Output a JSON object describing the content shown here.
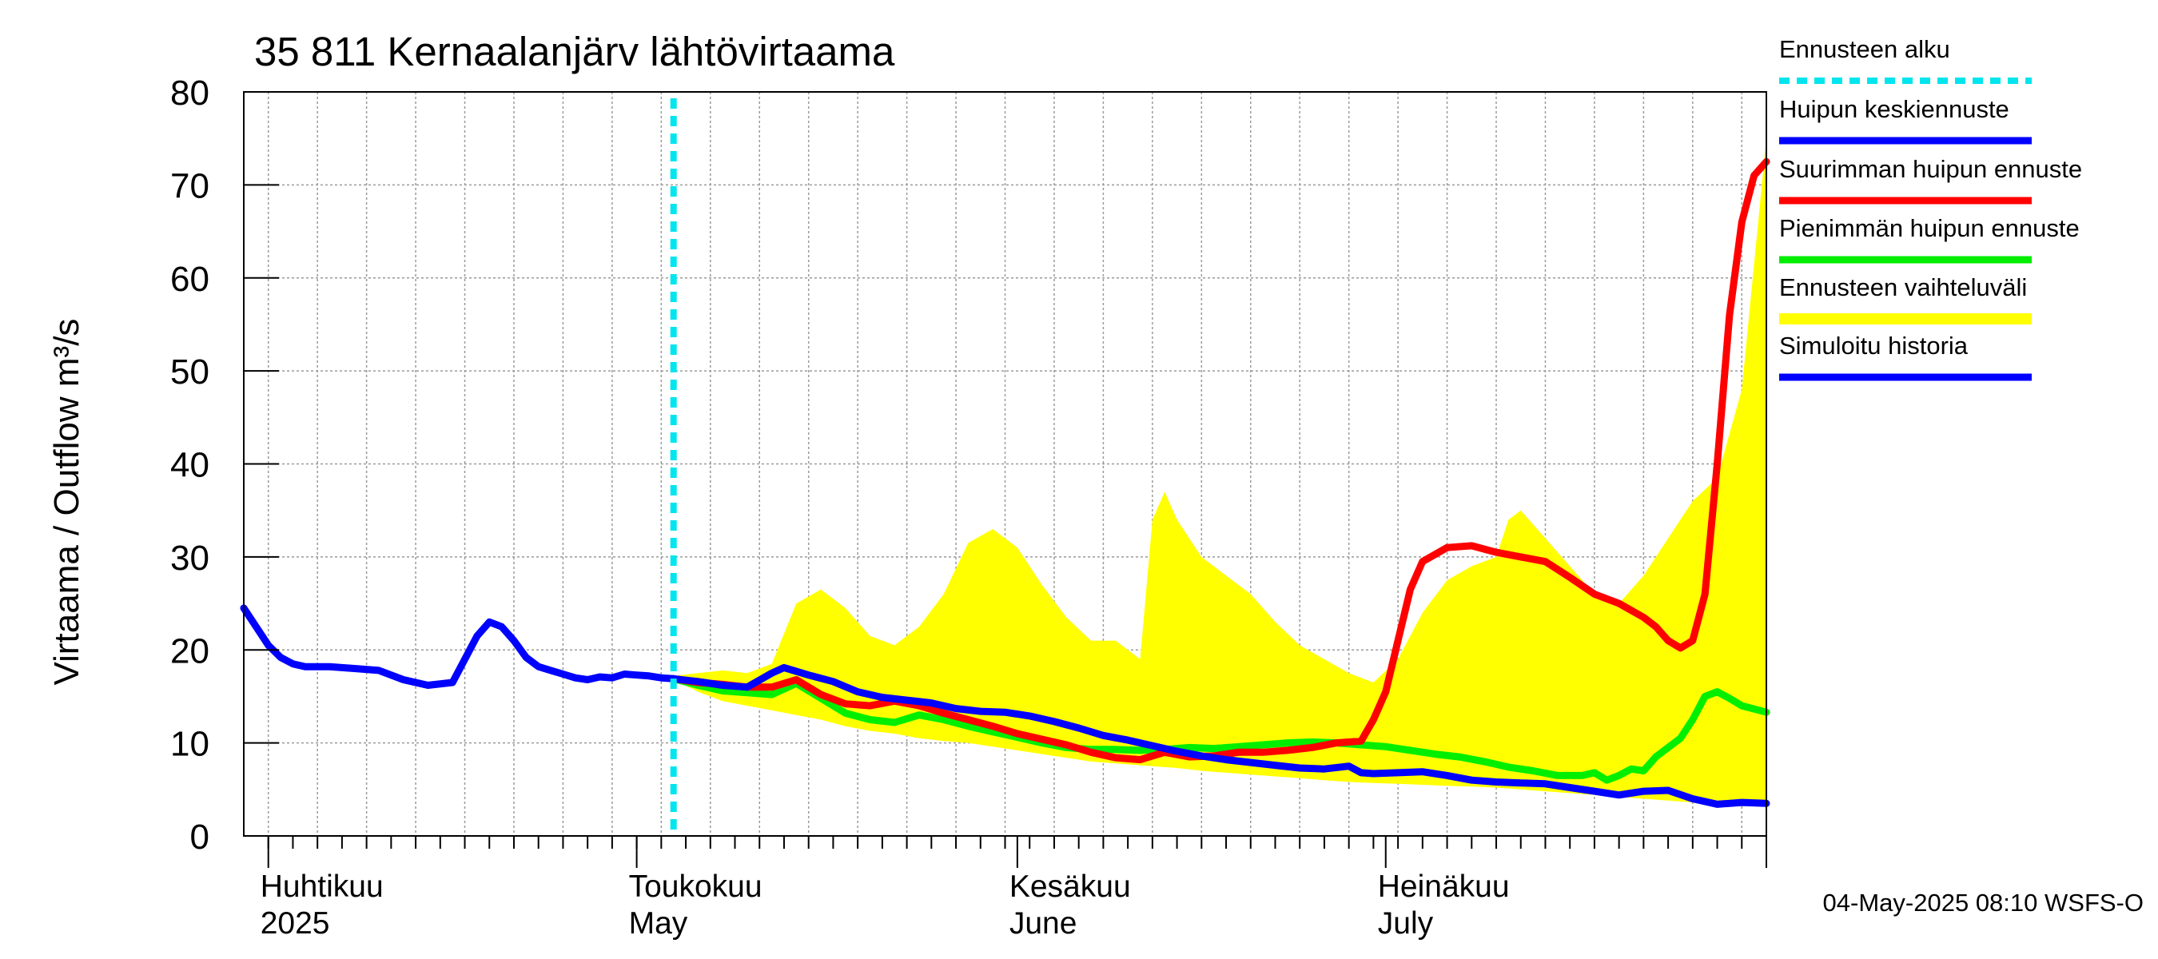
{
  "chart_data": {
    "type": "line",
    "title": "35 811 Kernaalanjärv lähtövirtaama",
    "ylabel": "Virtaama / Outflow    m³/s",
    "ylim": [
      0,
      80
    ],
    "yticks": [
      0,
      10,
      20,
      30,
      40,
      50,
      60,
      70,
      80
    ],
    "xlim": [
      "2025-03-30",
      "2025-08-01"
    ],
    "x_month_labels": [
      {
        "date": "2025-04-01",
        "fi": "Huhtikuu",
        "en": "2025"
      },
      {
        "date": "2025-05-01",
        "fi": "Toukokuu",
        "en": "May"
      },
      {
        "date": "2025-06-01",
        "fi": "Kesäkuu",
        "en": "June"
      },
      {
        "date": "2025-07-01",
        "fi": "Heinäkuu",
        "en": "July"
      }
    ],
    "forecast_start": "2025-05-04",
    "grid": true,
    "legend_position": "right",
    "footer": "04-May-2025 08:10 WSFS-O",
    "legend": [
      {
        "label": "Ennusteen alku",
        "color": "#00e5ee",
        "style": "dashed"
      },
      {
        "label": "Huipun keskiennuste",
        "color": "#0000ff",
        "style": "solid"
      },
      {
        "label": "Suurimman huipun ennuste",
        "color": "#ff0000",
        "style": "solid"
      },
      {
        "label": "Pienimmän huipun ennuste",
        "color": "#00ee00",
        "style": "solid"
      },
      {
        "label": "Ennusteen vaihteluväli",
        "color": "#ffff00",
        "style": "band"
      },
      {
        "label": "Simuloitu historia",
        "color": "#0000ff",
        "style": "solid"
      }
    ],
    "series": [
      {
        "name": "Simuloitu historia",
        "color": "#0000ff",
        "x": [
          "2025-03-30",
          "2025-03-31",
          "2025-04-01",
          "2025-04-02",
          "2025-04-03",
          "2025-04-04",
          "2025-04-06",
          "2025-04-08",
          "2025-04-10",
          "2025-04-12",
          "2025-04-14",
          "2025-04-16",
          "2025-04-18",
          "2025-04-19",
          "2025-04-20",
          "2025-04-21",
          "2025-04-22",
          "2025-04-23",
          "2025-04-24",
          "2025-04-25",
          "2025-04-26",
          "2025-04-27",
          "2025-04-28",
          "2025-04-29",
          "2025-04-30",
          "2025-05-01",
          "2025-05-02",
          "2025-05-03",
          "2025-05-04"
        ],
        "y": [
          24.5,
          22.5,
          20.5,
          19.2,
          18.5,
          18.2,
          18.2,
          18.0,
          17.8,
          16.8,
          16.2,
          16.5,
          21.5,
          23.0,
          22.5,
          21.0,
          19.2,
          18.2,
          17.8,
          17.4,
          17.0,
          16.8,
          17.1,
          17.0,
          17.4,
          17.3,
          17.2,
          17.0,
          16.9
        ]
      },
      {
        "name": "Huipun keskiennuste",
        "color": "#0000ff",
        "x": [
          "2025-05-04",
          "2025-05-06",
          "2025-05-08",
          "2025-05-10",
          "2025-05-12",
          "2025-05-13",
          "2025-05-15",
          "2025-05-17",
          "2025-05-19",
          "2025-05-21",
          "2025-05-23",
          "2025-05-25",
          "2025-05-27",
          "2025-05-29",
          "2025-05-31",
          "2025-06-02",
          "2025-06-04",
          "2025-06-06",
          "2025-06-08",
          "2025-06-10",
          "2025-06-12",
          "2025-06-14",
          "2025-06-16",
          "2025-06-18",
          "2025-06-20",
          "2025-06-22",
          "2025-06-24",
          "2025-06-26",
          "2025-06-28",
          "2025-06-29",
          "2025-06-30",
          "2025-07-02",
          "2025-07-04",
          "2025-07-06",
          "2025-07-08",
          "2025-07-10",
          "2025-07-12",
          "2025-07-14",
          "2025-07-16",
          "2025-07-18",
          "2025-07-20",
          "2025-07-22",
          "2025-07-24",
          "2025-07-26",
          "2025-07-28",
          "2025-07-30",
          "2025-08-01"
        ],
        "y": [
          16.9,
          16.6,
          16.2,
          16.0,
          17.5,
          18.1,
          17.3,
          16.6,
          15.5,
          14.9,
          14.6,
          14.3,
          13.7,
          13.4,
          13.3,
          12.9,
          12.3,
          11.6,
          10.8,
          10.3,
          9.7,
          9.1,
          8.6,
          8.2,
          7.9,
          7.6,
          7.3,
          7.2,
          7.5,
          6.8,
          6.7,
          6.8,
          6.9,
          6.5,
          6.0,
          5.8,
          5.7,
          5.6,
          5.2,
          4.8,
          4.4,
          4.8,
          4.9,
          4.0,
          3.4,
          3.6,
          3.5
        ]
      },
      {
        "name": "Suurimman huipun ennuste",
        "color": "#ff0000",
        "x": [
          "2025-05-04",
          "2025-05-06",
          "2025-05-08",
          "2025-05-10",
          "2025-05-12",
          "2025-05-14",
          "2025-05-16",
          "2025-05-18",
          "2025-05-20",
          "2025-05-22",
          "2025-05-24",
          "2025-05-26",
          "2025-05-28",
          "2025-05-30",
          "2025-06-01",
          "2025-06-03",
          "2025-06-05",
          "2025-06-07",
          "2025-06-09",
          "2025-06-11",
          "2025-06-13",
          "2025-06-15",
          "2025-06-17",
          "2025-06-19",
          "2025-06-21",
          "2025-06-23",
          "2025-06-25",
          "2025-06-27",
          "2025-06-29",
          "2025-06-30",
          "2025-07-01",
          "2025-07-02",
          "2025-07-03",
          "2025-07-04",
          "2025-07-06",
          "2025-07-08",
          "2025-07-10",
          "2025-07-12",
          "2025-07-14",
          "2025-07-16",
          "2025-07-18",
          "2025-07-20",
          "2025-07-22",
          "2025-07-23",
          "2025-07-24",
          "2025-07-25",
          "2025-07-26",
          "2025-07-27",
          "2025-07-28",
          "2025-07-29",
          "2025-07-30",
          "2025-07-31",
          "2025-08-01"
        ],
        "y": [
          16.9,
          16.5,
          16.3,
          16.0,
          16.0,
          16.8,
          15.2,
          14.2,
          14.0,
          14.5,
          14.0,
          13.2,
          12.5,
          11.8,
          11.0,
          10.4,
          9.8,
          9.0,
          8.4,
          8.2,
          9.0,
          8.5,
          8.6,
          9.0,
          9.0,
          9.2,
          9.5,
          10.0,
          10.2,
          12.5,
          15.5,
          21.0,
          26.5,
          29.5,
          31.0,
          31.2,
          30.5,
          30.0,
          29.5,
          27.8,
          26.0,
          25.0,
          23.5,
          22.5,
          21.0,
          20.2,
          21.0,
          26.0,
          40.0,
          56.0,
          66.0,
          71.0,
          72.5
        ]
      },
      {
        "name": "Pienimmän huipun ennuste",
        "color": "#00ee00",
        "x": [
          "2025-05-04",
          "2025-05-06",
          "2025-05-08",
          "2025-05-10",
          "2025-05-12",
          "2025-05-14",
          "2025-05-16",
          "2025-05-18",
          "2025-05-20",
          "2025-05-22",
          "2025-05-24",
          "2025-05-26",
          "2025-05-28",
          "2025-05-30",
          "2025-06-01",
          "2025-06-03",
          "2025-06-05",
          "2025-06-07",
          "2025-06-09",
          "2025-06-11",
          "2025-06-13",
          "2025-06-15",
          "2025-06-17",
          "2025-06-19",
          "2025-06-21",
          "2025-06-23",
          "2025-06-25",
          "2025-06-27",
          "2025-06-29",
          "2025-07-01",
          "2025-07-03",
          "2025-07-05",
          "2025-07-07",
          "2025-07-09",
          "2025-07-11",
          "2025-07-13",
          "2025-07-15",
          "2025-07-17",
          "2025-07-18",
          "2025-07-19",
          "2025-07-20",
          "2025-07-21",
          "2025-07-22",
          "2025-07-23",
          "2025-07-24",
          "2025-07-25",
          "2025-07-26",
          "2025-07-27",
          "2025-07-28",
          "2025-07-29",
          "2025-07-30",
          "2025-08-01"
        ],
        "y": [
          16.9,
          16.2,
          15.6,
          15.4,
          15.2,
          16.4,
          14.8,
          13.2,
          12.5,
          12.2,
          13.0,
          12.5,
          11.8,
          11.2,
          10.6,
          10.0,
          9.5,
          9.3,
          9.3,
          9.2,
          9.3,
          9.5,
          9.4,
          9.6,
          9.8,
          10.0,
          10.1,
          10.0,
          9.8,
          9.6,
          9.2,
          8.8,
          8.5,
          8.0,
          7.4,
          7.0,
          6.5,
          6.5,
          6.8,
          6.0,
          6.5,
          7.2,
          7.0,
          8.5,
          9.5,
          10.5,
          12.5,
          15.0,
          15.5,
          14.8,
          14.0,
          13.3
        ]
      },
      {
        "name": "Ennusteen vaihteluväli",
        "color": "#ffff00",
        "x": [
          "2025-05-02",
          "2025-05-04",
          "2025-05-06",
          "2025-05-08",
          "2025-05-10",
          "2025-05-12",
          "2025-05-14",
          "2025-05-16",
          "2025-05-18",
          "2025-05-20",
          "2025-05-22",
          "2025-05-24",
          "2025-05-26",
          "2025-05-28",
          "2025-05-30",
          "2025-06-01",
          "2025-06-03",
          "2025-06-05",
          "2025-06-07",
          "2025-06-09",
          "2025-06-11",
          "2025-06-12",
          "2025-06-13",
          "2025-06-14",
          "2025-06-16",
          "2025-06-18",
          "2025-06-20",
          "2025-06-22",
          "2025-06-24",
          "2025-06-26",
          "2025-06-28",
          "2025-06-30",
          "2025-07-02",
          "2025-07-04",
          "2025-07-06",
          "2025-07-08",
          "2025-07-10",
          "2025-07-11",
          "2025-07-12",
          "2025-07-14",
          "2025-07-16",
          "2025-07-18",
          "2025-07-20",
          "2025-07-22",
          "2025-07-24",
          "2025-07-26",
          "2025-07-28",
          "2025-07-30",
          "2025-08-01"
        ],
        "upper": [
          17.0,
          17.2,
          17.5,
          17.8,
          17.5,
          18.5,
          25.0,
          26.5,
          24.5,
          21.5,
          20.5,
          22.5,
          26.0,
          31.5,
          33.0,
          31.0,
          27.0,
          23.5,
          21.0,
          21.0,
          19.0,
          34.0,
          37.0,
          34.0,
          30.0,
          28.0,
          26.0,
          23.0,
          20.5,
          19.0,
          17.5,
          16.5,
          19.0,
          24.0,
          27.5,
          29.0,
          30.0,
          34.0,
          35.0,
          32.0,
          29.0,
          26.0,
          25.0,
          28.0,
          32.0,
          36.0,
          38.5,
          48.0,
          75.0
        ],
        "lower": [
          17.0,
          16.8,
          15.5,
          14.5,
          14.0,
          13.5,
          13.0,
          12.5,
          11.8,
          11.3,
          11.0,
          10.5,
          10.2,
          10.0,
          9.6,
          9.2,
          8.8,
          8.4,
          8.0,
          7.8,
          7.6,
          7.5,
          7.4,
          7.3,
          7.0,
          6.8,
          6.6,
          6.4,
          6.2,
          6.0,
          5.8,
          5.7,
          5.6,
          5.5,
          5.4,
          5.3,
          5.2,
          5.1,
          5.0,
          4.8,
          4.6,
          4.4,
          4.2,
          4.0,
          3.8,
          3.6,
          3.3,
          3.2,
          3.4
        ]
      }
    ]
  }
}
